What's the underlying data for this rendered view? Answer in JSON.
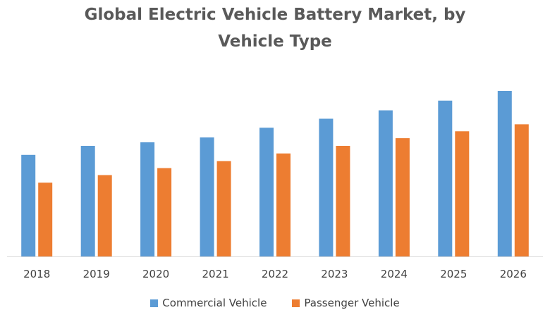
{
  "chart_data": {
    "type": "bar",
    "title_line1": "Global Electric Vehicle Battery Market, by",
    "title_line2": "Vehicle Type",
    "xlabel": "",
    "ylabel": "",
    "categories": [
      "2018",
      "2019",
      "2020",
      "2021",
      "2022",
      "2023",
      "2024",
      "2025",
      "2026"
    ],
    "series": [
      {
        "name": "Commercial Vehicle",
        "color": "#5B9BD5",
        "values": [
          146,
          159,
          164,
          171,
          185,
          198,
          210,
          224,
          238
        ]
      },
      {
        "name": "Passenger Vehicle",
        "color": "#ED7D31",
        "values": [
          106,
          117,
          127,
          137,
          148,
          159,
          170,
          180,
          190
        ]
      }
    ],
    "ylim": [
      0,
      240
    ],
    "grid": false,
    "legend_position": "bottom"
  }
}
